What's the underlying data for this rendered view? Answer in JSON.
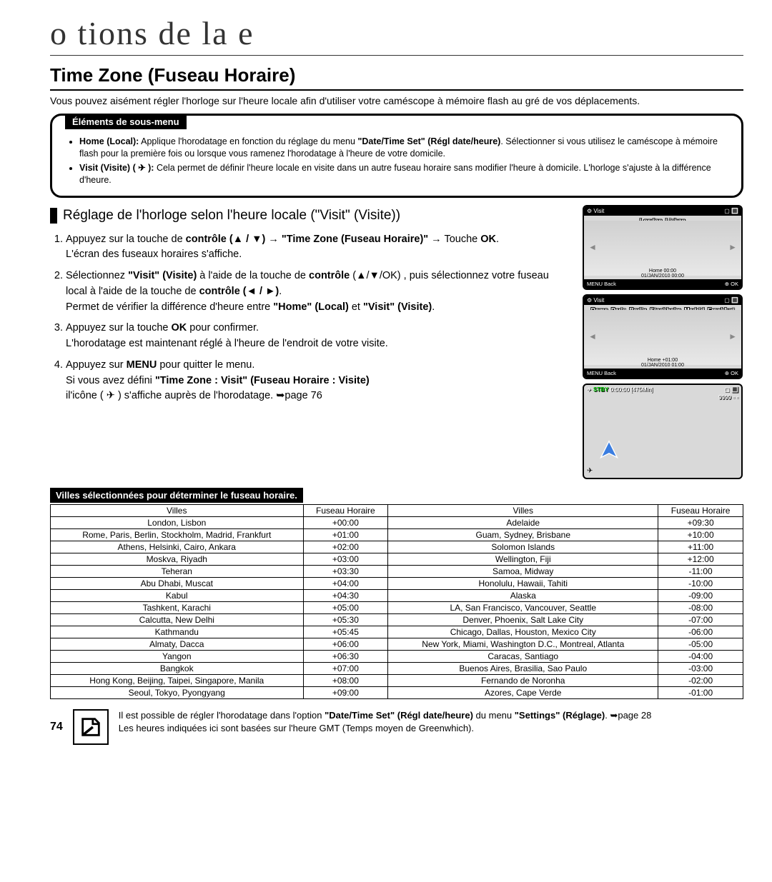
{
  "chapter_title": "o tions de  la e",
  "page_number": "74",
  "heading": "Time Zone (Fuseau Horaire)",
  "intro": "Vous pouvez aisément régler l'horloge sur l'heure locale afin d'utiliser votre caméscope à mémoire flash au gré de vos déplacements.",
  "submenu": {
    "label": "Éléments de sous-menu",
    "item1_bold": "Home (Local):",
    "item1_rest": " Applique l'horodatage en fonction du réglage du menu ",
    "item1_bold2": "\"Date/Time Set\" (Régl date/heure)",
    "item1_rest2": ". Sélectionner si vous utilisez le caméscope à mémoire flash pour la première fois ou lorsque vous ramenez l'horodatage à l'heure de votre domicile.",
    "item2_bold": "Visit (Visite) ( ✈ ):",
    "item2_rest": " Cela permet de définir l'heure locale en visite dans un autre fuseau horaire sans modifier l'heure à domicile. L'horloge s'ajuste à la différence d'heure."
  },
  "section_header": "Réglage de l'horloge selon l'heure locale (\"Visit\" (Visite))",
  "steps": {
    "s1a": "Appuyez sur la touche de ",
    "s1b": "contrôle (▲ / ▼) → \"Time Zone (Fuseau Horaire)\" →",
    "s1c": " Touche ",
    "s1d": "OK",
    "s1e": ".",
    "s1f": "L'écran des fuseaux horaires s'affiche.",
    "s2a": "Sélectionnez ",
    "s2b": "\"Visit\" (Visite)",
    "s2c": " à l'aide de la touche de ",
    "s2d": "contrôle",
    "s2e": " (▲/▼/OK) , puis sélectionnez votre fuseau local à l'aide de la touche de ",
    "s2f": "contrôle (◄ / ►)",
    "s2g": ".",
    "s2h": "Permet de vérifier la différence d'heure entre ",
    "s2i": "\"Home\" (Local)",
    "s2j": " et ",
    "s2k": "\"Visit\" (Visite)",
    "s2l": ".",
    "s3a": "Appuyez sur la touche ",
    "s3b": "OK",
    "s3c": " pour confirmer.",
    "s3d": "L'horodatage est maintenant réglé à l'heure de l'endroit de votre visite.",
    "s4a": "Appuyez sur ",
    "s4b": "MENU",
    "s4c": " pour quitter le menu.",
    "s4d": "Si vous avez défini ",
    "s4e": "\"Time Zone : Visit\" (Fuseau Horaire : Visite)",
    "s4f": " il'icône ( ✈ ) s'affiche auprès de l'horodatage. ➥page 76"
  },
  "screens": {
    "s1": {
      "title": "⚙ Visit",
      "batt": "▢ 🔳",
      "city": "London, Lisbon",
      "home": "Home 00:00",
      "date": "01/JAN/2010 00:00",
      "back": "MENU Back",
      "ok": "⊕ OK"
    },
    "s2": {
      "title": "⚙ Visit",
      "batt": "▢ 🔳",
      "city": "Rome, Paris, Berlin, Stockholm, Madrid, Frankfurt",
      "home": "Home +01:00",
      "date": "01/JAN/2010 01:00",
      "back": "MENU Back",
      "ok": "⊕ OK"
    },
    "s3": {
      "stby": "STBY",
      "time": "0:00:00 [475Min]",
      "batt": "▢ 🔳",
      "num": "9999 ▫ ▫"
    }
  },
  "table_label": "Villes sélectionnées pour déterminer le fuseau horaire.",
  "table": {
    "headers": [
      "Villes",
      "Fuseau Horaire",
      "Villes",
      "Fuseau Horaire"
    ],
    "rows": [
      [
        "London, Lisbon",
        "+00:00",
        "Adelaide",
        "+09:30"
      ],
      [
        "Rome, Paris, Berlin, Stockholm, Madrid, Frankfurt",
        "+01:00",
        "Guam, Sydney, Brisbane",
        "+10:00"
      ],
      [
        "Athens, Helsinki, Cairo, Ankara",
        "+02:00",
        "Solomon Islands",
        "+11:00"
      ],
      [
        "Moskva, Riyadh",
        "+03:00",
        "Wellington, Fiji",
        "+12:00"
      ],
      [
        "Teheran",
        "+03:30",
        "Samoa, Midway",
        "-11:00"
      ],
      [
        "Abu Dhabi, Muscat",
        "+04:00",
        "Honolulu, Hawaii, Tahiti",
        "-10:00"
      ],
      [
        "Kabul",
        "+04:30",
        "Alaska",
        "-09:00"
      ],
      [
        "Tashkent, Karachi",
        "+05:00",
        "LA, San Francisco, Vancouver, Seattle",
        "-08:00"
      ],
      [
        "Calcutta, New Delhi",
        "+05:30",
        "Denver, Phoenix, Salt Lake City",
        "-07:00"
      ],
      [
        "Kathmandu",
        "+05:45",
        "Chicago, Dallas, Houston, Mexico City",
        "-06:00"
      ],
      [
        "Almaty, Dacca",
        "+06:00",
        "New York, Miami, Washington D.C., Montreal, Atlanta",
        "-05:00"
      ],
      [
        "Yangon",
        "+06:30",
        "Caracas, Santiago",
        "-04:00"
      ],
      [
        "Bangkok",
        "+07:00",
        "Buenos Aires, Brasilia, Sao Paulo",
        "-03:00"
      ],
      [
        "Hong Kong, Beijing, Taipei, Singapore, Manila",
        "+08:00",
        "Fernando de Noronha",
        "-02:00"
      ],
      [
        "Seoul, Tokyo, Pyongyang",
        "+09:00",
        "Azores, Cape Verde",
        "-01:00"
      ]
    ]
  },
  "note": {
    "l1a": "Il est possible de régler l'horodatage dans l'option ",
    "l1b": "\"Date/Time Set\" (Régl date/heure)",
    "l1c": " du menu ",
    "l1d": "\"Settings\" (Réglage)",
    "l1e": ". ➥page 28",
    "l2": "Les heures indiquées ici sont basées sur l'heure GMT (Temps moyen de Greenwhich)."
  }
}
